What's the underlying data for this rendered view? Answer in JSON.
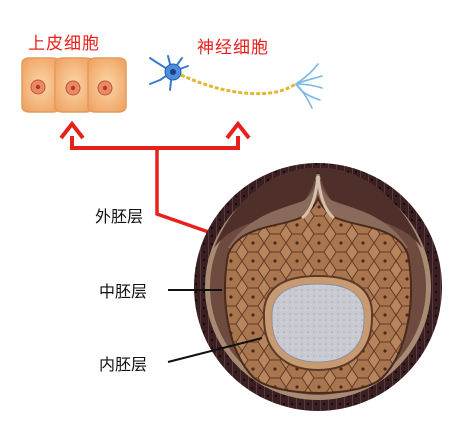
{
  "labels": {
    "epithelial_cell": "上皮细胞",
    "nerve_cell": "神经细胞",
    "ectoderm": "外胚层",
    "mesoderm": "中胚层",
    "endoderm": "内胚层"
  },
  "colors": {
    "label_red": "#e8201c",
    "arrow_red": "#e8201c",
    "text_black": "#111111",
    "ectoderm_dark": "#3a1f22",
    "mesoderm_brown": "#9a6a4a",
    "endoderm_tan": "#c89a72",
    "cavity_gray": "#c9c9d2",
    "epithelial_cell_fill": "#f4b47a",
    "epithelial_nucleus": "#d8604a",
    "neuron_body": "#3a7ad0",
    "axon_yellow": "#e2b830"
  }
}
